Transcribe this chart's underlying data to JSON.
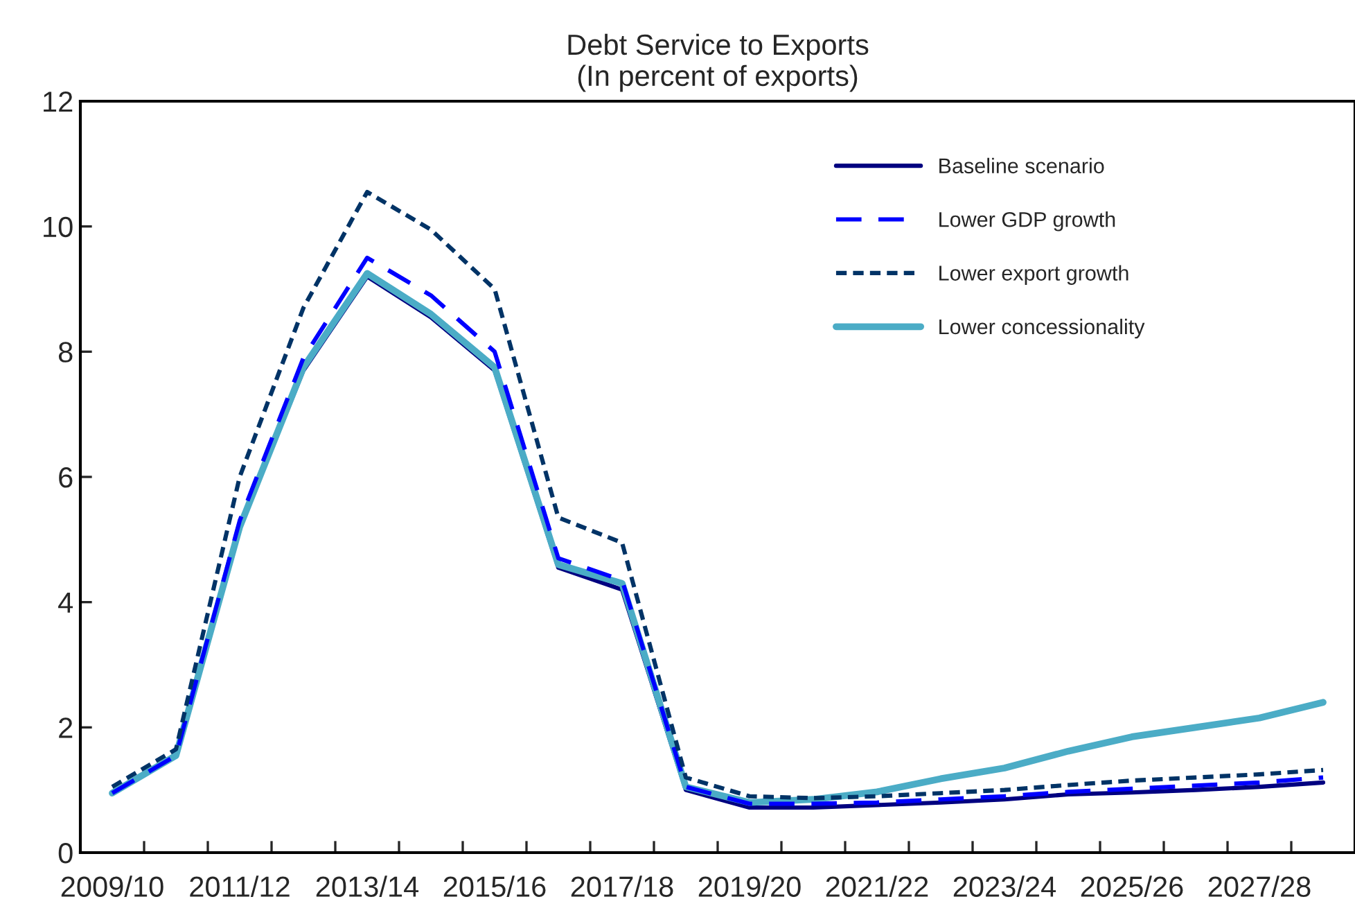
{
  "chart_data": {
    "type": "line",
    "title": "Debt Service to Exports\n(In percent of exports)",
    "categories": [
      "2009/10",
      null,
      "2011/12",
      null,
      "2013/14",
      null,
      "2015/16",
      null,
      "2017/18",
      null,
      "2019/20",
      null,
      "2021/22",
      null,
      "2023/24",
      null,
      "2025/26",
      null,
      "2027/28",
      null
    ],
    "series": [
      {
        "name": "Baseline scenario",
        "color": "#000080",
        "line_style": "solid",
        "values": [
          0.95,
          1.55,
          5.2,
          7.7,
          9.2,
          8.55,
          7.7,
          4.55,
          4.2,
          1.0,
          0.72,
          0.72,
          0.76,
          0.8,
          0.85,
          0.93,
          0.96,
          1.0,
          1.05,
          1.12
        ]
      },
      {
        "name": "Lower GDP growth",
        "color": "#0000ff",
        "line_style": "dashed",
        "values": [
          0.95,
          1.55,
          5.3,
          7.9,
          9.5,
          8.9,
          8.0,
          4.7,
          4.35,
          1.05,
          0.78,
          0.78,
          0.8,
          0.85,
          0.9,
          0.97,
          1.02,
          1.07,
          1.12,
          1.2
        ]
      },
      {
        "name": "Lower export growth",
        "color": "#003366",
        "line_style": "dotted",
        "values": [
          1.05,
          1.65,
          6.0,
          8.7,
          10.55,
          9.95,
          9.0,
          5.35,
          4.95,
          1.2,
          0.9,
          0.87,
          0.9,
          0.95,
          1.0,
          1.08,
          1.15,
          1.2,
          1.25,
          1.32
        ]
      },
      {
        "name": "Lower concessionality",
        "color": "#4bacc6",
        "line_style": "solid",
        "values": [
          0.95,
          1.55,
          5.2,
          7.75,
          9.25,
          8.6,
          7.75,
          4.6,
          4.3,
          1.05,
          0.8,
          0.85,
          0.97,
          1.18,
          1.35,
          1.62,
          1.85,
          2.0,
          2.15,
          2.4
        ]
      }
    ],
    "ylim": [
      0,
      12
    ],
    "yticks": [
      0,
      2,
      4,
      6,
      8,
      10,
      12
    ],
    "grid": false,
    "legend": "top right",
    "marker": "none"
  }
}
